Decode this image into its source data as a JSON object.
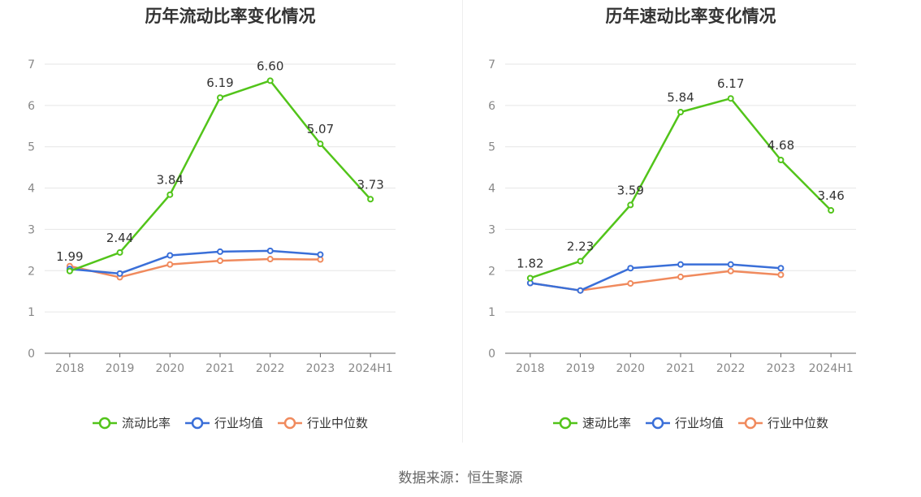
{
  "colors": {
    "main": "#52c41a",
    "avg": "#3a6fd8",
    "median": "#f08a5d"
  },
  "source_text": "数据来源：恒生聚源",
  "chart_data": [
    {
      "type": "line",
      "title": "历年流动比率变化情况",
      "categories": [
        "2018",
        "2019",
        "2020",
        "2021",
        "2022",
        "2023",
        "2024H1"
      ],
      "ylim": [
        0,
        7
      ],
      "yticks": [
        "0",
        "1",
        "2",
        "3",
        "4",
        "5",
        "6",
        "7"
      ],
      "grid": true,
      "legend_position": "bottom",
      "series": [
        {
          "name": "流动比率",
          "color_key": "main",
          "show_labels": true,
          "values": [
            1.99,
            2.44,
            3.84,
            6.19,
            6.6,
            5.07,
            3.73
          ],
          "labels": [
            "1.99",
            "2.44",
            "3.84",
            "6.19",
            "6.60",
            "5.07",
            "3.73"
          ]
        },
        {
          "name": "行业均值",
          "color_key": "avg",
          "show_labels": false,
          "values": [
            2.04,
            1.93,
            2.37,
            2.46,
            2.48,
            2.39,
            null
          ]
        },
        {
          "name": "行业中位数",
          "color_key": "median",
          "show_labels": false,
          "values": [
            2.11,
            1.84,
            2.15,
            2.24,
            2.28,
            2.27,
            null
          ]
        }
      ]
    },
    {
      "type": "line",
      "title": "历年速动比率变化情况",
      "categories": [
        "2018",
        "2019",
        "2020",
        "2021",
        "2022",
        "2023",
        "2024H1"
      ],
      "ylim": [
        0,
        7
      ],
      "yticks": [
        "0",
        "1",
        "2",
        "3",
        "4",
        "5",
        "6",
        "7"
      ],
      "grid": true,
      "legend_position": "bottom",
      "series": [
        {
          "name": "速动比率",
          "color_key": "main",
          "show_labels": true,
          "values": [
            1.82,
            2.23,
            3.59,
            5.84,
            6.17,
            4.68,
            3.46
          ],
          "labels": [
            "1.82",
            "2.23",
            "3.59",
            "5.84",
            "6.17",
            "4.68",
            "3.46"
          ]
        },
        {
          "name": "行业均值",
          "color_key": "avg",
          "show_labels": false,
          "values": [
            1.7,
            1.52,
            2.06,
            2.15,
            2.15,
            2.06,
            null
          ]
        },
        {
          "name": "行业中位数",
          "color_key": "median",
          "show_labels": false,
          "values": [
            1.7,
            1.52,
            1.69,
            1.85,
            1.99,
            1.9,
            null
          ]
        }
      ]
    }
  ]
}
